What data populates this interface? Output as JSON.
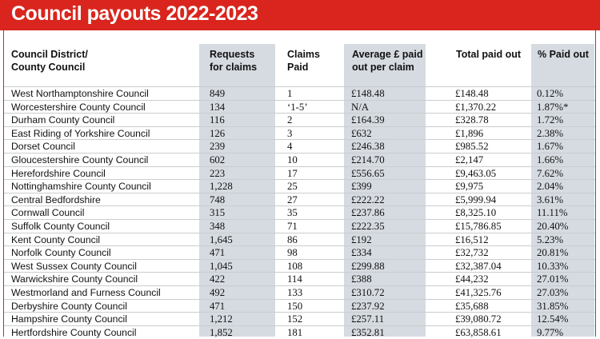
{
  "title": "Council payouts 2022-2023",
  "colors": {
    "title_bg": "#d9251d",
    "title_text": "#ffffff",
    "column_shade": "#d6dbe1"
  },
  "table": {
    "headers": [
      "Council District/\nCounty Council",
      "Requests\nfor claims",
      "Claims\nPaid",
      "Average £ paid\nout per claim",
      "Total paid out",
      "% Paid out"
    ],
    "rows": [
      [
        "West Northamptonshire Council",
        "849",
        "1",
        "£148.48",
        "£148.48",
        "0.12%"
      ],
      [
        "Worcestershire County Council",
        "134",
        "‘1-5’",
        "N/A",
        "£1,370.22",
        "1.87%*"
      ],
      [
        "Durham County Council",
        "116",
        "2",
        "£164.39",
        "£328.78",
        "1.72%"
      ],
      [
        "East Riding of Yorkshire Council",
        "126",
        "3",
        "£632",
        "£1,896",
        "2.38%"
      ],
      [
        "Dorset Council",
        "239",
        "4",
        "£246.38",
        "£985.52",
        "1.67%"
      ],
      [
        "Gloucestershire County Council",
        "602",
        "10",
        "£214.70",
        "£2,147",
        "1.66%"
      ],
      [
        "Herefordshire Council",
        "223",
        "17",
        "£556.65",
        "£9,463.05",
        "7.62%"
      ],
      [
        "Nottinghamshire County Council",
        "1,228",
        "25",
        "£399",
        "£9,975",
        "2.04%"
      ],
      [
        "Central Bedfordshire",
        "748",
        "27",
        "£222.22",
        "£5,999.94",
        "3.61%"
      ],
      [
        "Cornwall Council",
        "315",
        "35",
        "£237.86",
        "£8,325.10",
        "11.11%"
      ],
      [
        "Suffolk County Council",
        "348",
        "71",
        "£222.35",
        "£15,786.85",
        "20.40%"
      ],
      [
        "Kent County Council",
        "1,645",
        "86",
        "£192",
        "£16,512",
        "5.23%"
      ],
      [
        "Norfolk County Council",
        "471",
        "98",
        "£334",
        "£32,732",
        "20.81%"
      ],
      [
        "West Sussex County Council",
        "1,045",
        "108",
        "£299.88",
        "£32,387.04",
        "10.33%"
      ],
      [
        "Warwickshire County Council",
        "422",
        "114",
        "£388",
        "£44,232",
        "27.01%"
      ],
      [
        "Westmorland and Furness Council",
        "492",
        "133",
        "£310.72",
        "£41,325.76",
        "27.03%"
      ],
      [
        "Derbyshire County Council",
        "471",
        "150",
        "£237.92",
        "£35,688",
        "31.85%"
      ],
      [
        "Hampshire County Council",
        "1,212",
        "152",
        "£257.11",
        "£39,080.72",
        "12.54%"
      ],
      [
        "Hertfordshire County Council",
        "1,852",
        "181",
        "£352.81",
        "£63,858.61",
        "9.77%"
      ]
    ]
  }
}
